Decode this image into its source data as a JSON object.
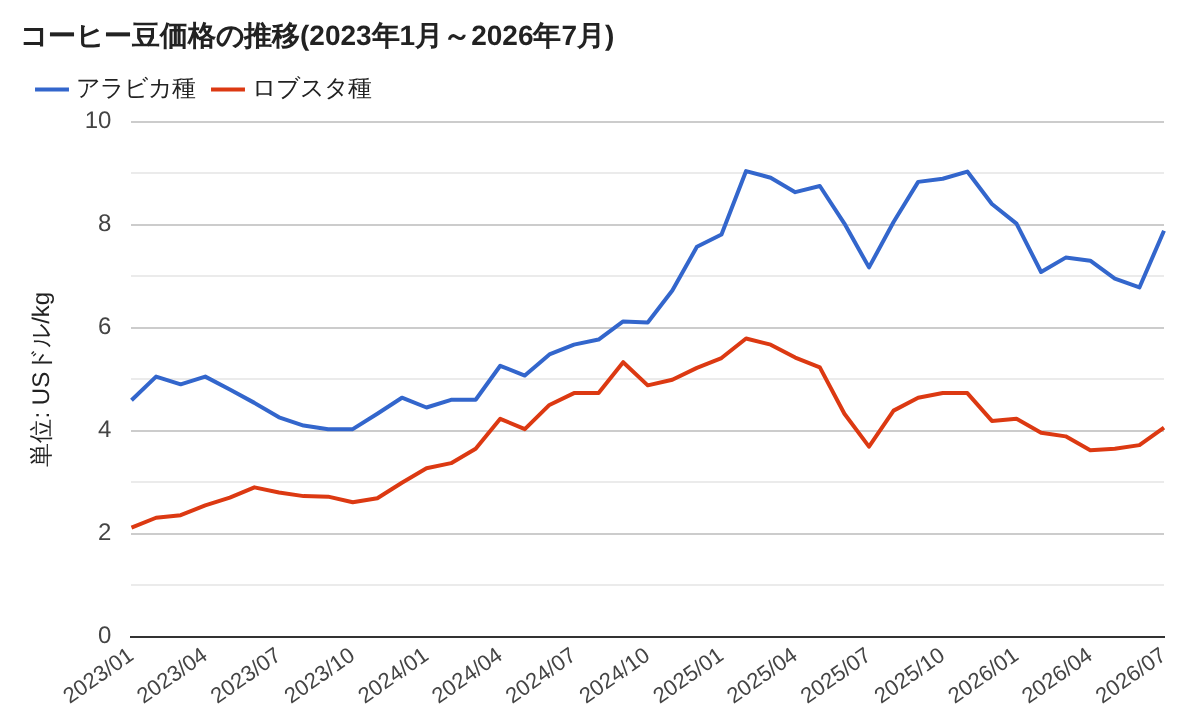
{
  "chart_data": {
    "type": "line",
    "title": "コーヒー豆価格の推移(2023年1月～2026年7月)",
    "ylabel": "単位: USドル/kg",
    "categories": [
      "2023/01",
      null,
      null,
      "2023/04",
      null,
      null,
      "2023/07",
      null,
      null,
      "2023/10",
      null,
      null,
      "2024/01",
      null,
      null,
      "2024/04",
      null,
      null,
      "2024/07",
      null,
      null,
      "2024/10",
      null,
      null,
      "2025/01",
      null,
      null,
      "2025/04",
      null,
      null,
      "2025/07",
      null,
      null,
      "2025/10",
      null,
      null,
      "2026/01",
      null,
      null,
      "2026/04",
      null,
      null,
      "2026/07"
    ],
    "series": [
      {
        "name": "アラビカ種",
        "color": "#3366cc",
        "values": [
          4.59,
          5.05,
          4.9,
          5.05,
          4.8,
          4.54,
          4.26,
          4.1,
          4.03,
          4.03,
          4.33,
          4.64,
          4.45,
          4.6,
          4.6,
          5.26,
          5.07,
          5.48,
          5.67,
          5.77,
          6.12,
          6.1,
          6.72,
          7.57,
          7.81,
          9.04,
          8.91,
          8.63,
          8.75,
          8.02,
          7.17,
          8.05,
          8.83,
          8.89,
          9.03,
          8.4,
          8.02,
          7.08,
          7.36,
          7.3,
          6.95,
          6.78,
          7.88
        ]
      },
      {
        "name": "ロブスタ種",
        "color": "#dc3912",
        "values": [
          2.12,
          2.31,
          2.36,
          2.55,
          2.7,
          2.9,
          2.8,
          2.73,
          2.72,
          2.61,
          2.69,
          2.99,
          3.27,
          3.37,
          3.65,
          4.23,
          4.03,
          4.5,
          4.73,
          4.73,
          5.33,
          4.88,
          4.99,
          5.22,
          5.41,
          5.79,
          5.67,
          5.42,
          5.23,
          4.33,
          3.69,
          4.39,
          4.64,
          4.73,
          4.73,
          4.19,
          4.23,
          3.96,
          3.89,
          3.62,
          3.65,
          3.72,
          4.06
        ]
      }
    ],
    "ylim": [
      0,
      10
    ],
    "yticks": [
      0,
      {
        "value": 1,
        "label": null
      },
      2,
      {
        "value": 3,
        "label": null
      },
      4,
      {
        "value": 5,
        "label": null
      },
      6,
      {
        "value": 7,
        "label": null
      },
      8,
      {
        "value": 9,
        "label": null
      },
      10
    ],
    "grid": "y",
    "legend": "top left",
    "marker": "none",
    "line_style": "solid"
  }
}
